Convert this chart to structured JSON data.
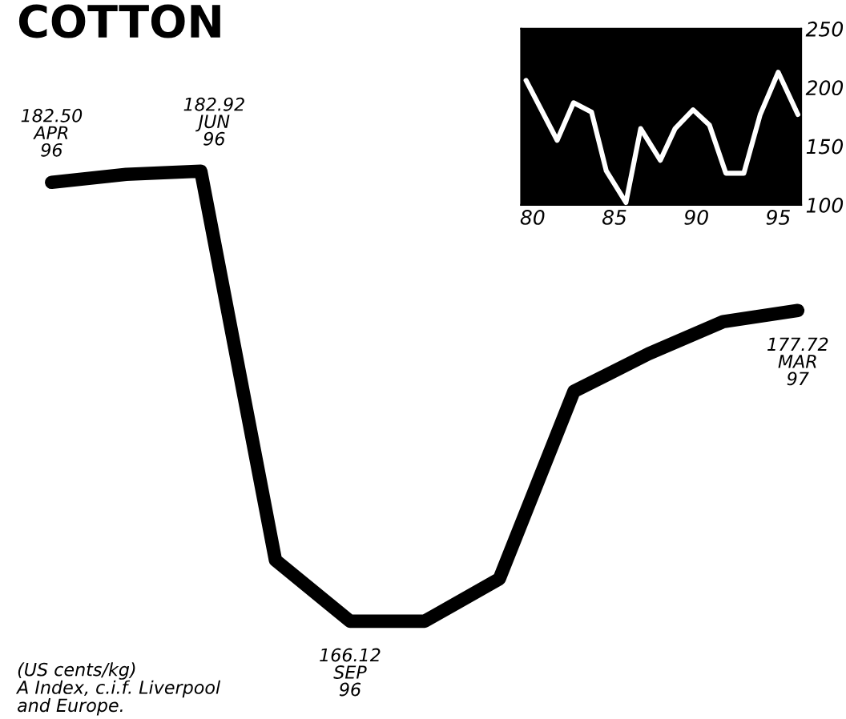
{
  "chart_data": [
    {
      "type": "line",
      "title": "COTTON",
      "categories": [
        null,
        null,
        null,
        null,
        null,
        null,
        null,
        null,
        null,
        null,
        null
      ],
      "series": [
        {
          "color": "#000000",
          "values": [
            182.5,
            182.8,
            182.92,
            168.4,
            166.12,
            166.12,
            167.7,
            174.7,
            176.1,
            177.3,
            177.72
          ],
          "value_labels": [
            "182.50\nAPR\n96",
            null,
            "182.92\nJUN\n96",
            null,
            "166.12\nSEP\n96",
            null,
            null,
            null,
            null,
            null,
            "177.72\nMAR\n97"
          ]
        }
      ],
      "annotations": [
        "(US cents/kg)\nA Index, c.i.f. Liverpool\nand Europe."
      ],
      "grid": false,
      "legend": false
    },
    {
      "type": "line",
      "x": [
        79.6,
        81.5,
        82.5,
        83.6,
        84.5,
        85.7,
        86.6,
        87.8,
        88.7,
        89.8,
        90.8,
        91.8,
        92.9,
        93.9,
        95.0,
        96.2
      ],
      "series": [
        {
          "color": "#ffffff",
          "values": [
            206,
            155,
            187,
            179,
            129,
            102,
            165,
            138,
            165,
            181,
            168,
            127,
            127,
            177,
            213,
            177
          ]
        }
      ],
      "xlim": [
        79.3,
        96.4
      ],
      "ylim": [
        100,
        250
      ],
      "xticks": [
        80,
        85,
        90,
        95
      ],
      "yticks": [
        100,
        150,
        200,
        250
      ],
      "grid": false,
      "legend": false
    }
  ]
}
